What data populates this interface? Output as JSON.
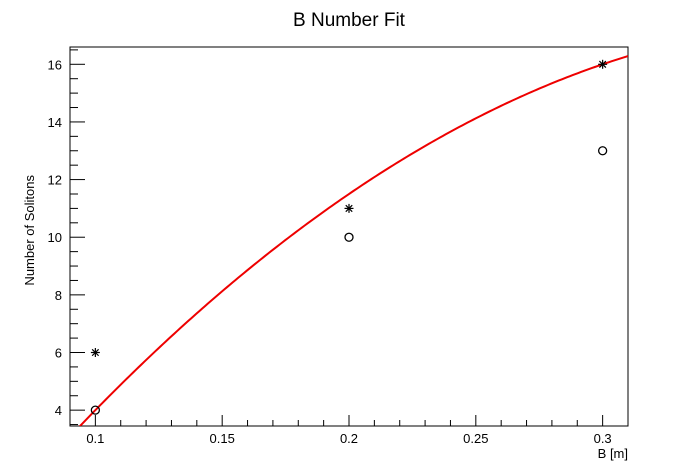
{
  "chart_data": {
    "type": "scatter",
    "title": "B Number Fit",
    "xlabel": "B [m]",
    "ylabel": "Number of Solitons",
    "xlim": [
      0.09,
      0.31
    ],
    "ylim": [
      3.45,
      16.6
    ],
    "x_ticks": [
      0.1,
      0.15,
      0.2,
      0.25,
      0.3
    ],
    "x_tick_labels": [
      "0.1",
      "0.15",
      "0.2",
      "0.25",
      "0.3"
    ],
    "y_ticks": [
      4,
      6,
      8,
      10,
      12,
      14,
      16
    ],
    "y_tick_labels": [
      "4",
      "6",
      "8",
      "10",
      "12",
      "14",
      "16"
    ],
    "grid": false,
    "legend": "none",
    "series": [
      {
        "marker": "star",
        "color": "#000000",
        "x": [
          0.1,
          0.2,
          0.3
        ],
        "y": [
          6,
          11,
          16
        ]
      },
      {
        "marker": "open-circle",
        "color": "#000000",
        "x": [
          0.1,
          0.2,
          0.3
        ],
        "y": [
          4,
          10,
          13
        ]
      }
    ],
    "fit": {
      "color": "#ee0000",
      "type": "quadratic",
      "coefficients": [
        -6.5,
        120,
        -150
      ],
      "x_range": [
        0.092,
        0.31
      ]
    }
  }
}
